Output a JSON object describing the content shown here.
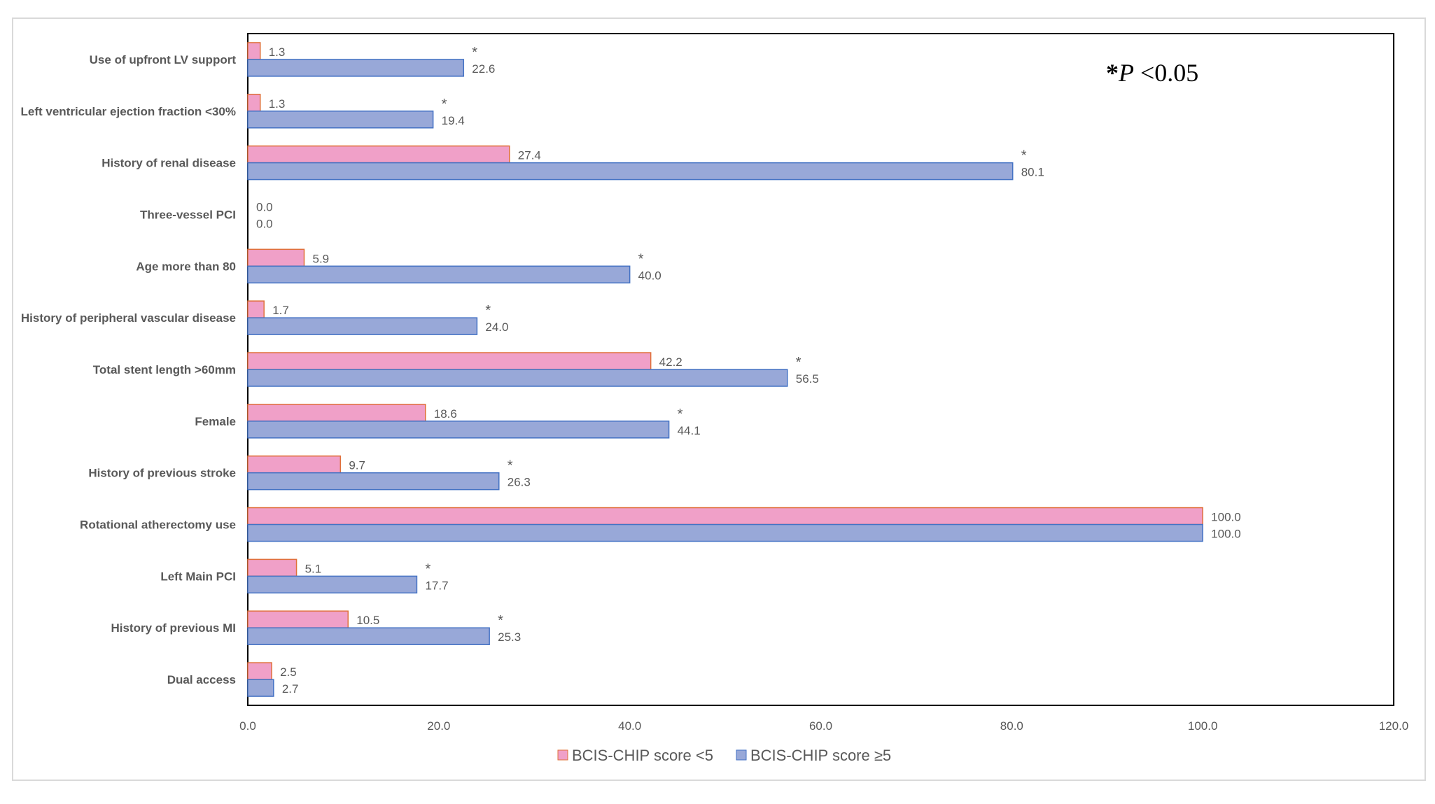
{
  "chart_data": {
    "type": "bar",
    "orientation": "horizontal",
    "categories": [
      "Use of upfront LV support",
      "Left ventricular ejection fraction <30%",
      "History of renal disease",
      "Three-vessel PCI",
      "Age more than 80",
      "History of peripheral vascular disease",
      "Total stent length >60mm",
      "Female",
      "History of previous stroke",
      "Rotational atherectomy use",
      "Left Main PCI",
      "History of previous MI",
      "Dual access"
    ],
    "series": [
      {
        "name": "BCIS-CHIP score <5",
        "color": "#F0A0C8",
        "border": "#E0703A",
        "values": [
          1.3,
          1.3,
          27.4,
          0.0,
          5.9,
          1.7,
          42.2,
          18.6,
          9.7,
          100.0,
          5.1,
          10.5,
          2.5
        ]
      },
      {
        "name": "BCIS-CHIP score ≥5",
        "color": "#98A8D8",
        "border": "#4472C4",
        "values": [
          22.6,
          19.4,
          80.1,
          0.0,
          40.0,
          24.0,
          56.5,
          44.1,
          26.3,
          100.0,
          17.7,
          25.3,
          2.7
        ]
      }
    ],
    "significant": [
      true,
      true,
      true,
      false,
      true,
      true,
      true,
      true,
      true,
      false,
      true,
      true,
      false
    ],
    "significance_marker": "*",
    "annotation": {
      "star": "*",
      "p": "P",
      "rest": " <0.05"
    },
    "xlim": [
      0,
      120
    ],
    "xticks": [
      "0.0",
      "20.0",
      "40.0",
      "60.0",
      "80.0",
      "100.0",
      "120.0"
    ],
    "legend_position": "bottom",
    "grid": false,
    "title": "",
    "xlabel": "",
    "ylabel": ""
  }
}
